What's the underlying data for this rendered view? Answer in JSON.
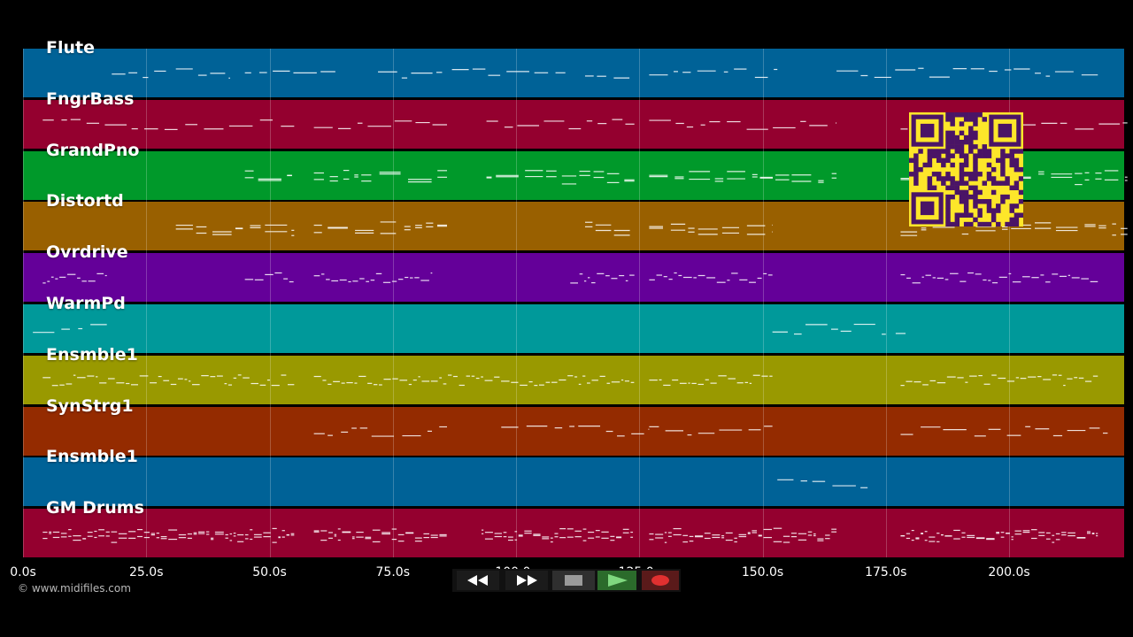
{
  "tracks": [
    {
      "name": "Flute",
      "color": "#006297"
    },
    {
      "name": "FngrBass",
      "color": "#94002f"
    },
    {
      "name": "GrandPno",
      "color": "#00992a"
    },
    {
      "name": "Distortd",
      "color": "#996000"
    },
    {
      "name": "Ovrdrive",
      "color": "#640099"
    },
    {
      "name": "WarmPd",
      "color": "#00999a"
    },
    {
      "name": "Ensmble1",
      "color": "#999900"
    },
    {
      "name": "SynStrg1",
      "color": "#942b00"
    },
    {
      "name": "Ensmble1",
      "color": "#006297"
    },
    {
      "name": "GM Drums",
      "color": "#94002f"
    }
  ],
  "timeline": {
    "ticks": [
      "0.0s",
      "25.0s",
      "50.0s",
      "75.0s",
      "100.0s",
      "125.0s",
      "150.0s",
      "175.0s",
      "200.0s"
    ],
    "tick_values": [
      0,
      25,
      50,
      75,
      100,
      125,
      150,
      175,
      200
    ]
  },
  "transport": {
    "buttons": [
      {
        "name": "rewind-button",
        "icon": "rewind-icon"
      },
      {
        "name": "fast-forward-button",
        "icon": "fast-forward-icon"
      },
      {
        "name": "stop-button",
        "icon": "stop-icon"
      },
      {
        "name": "play-button",
        "icon": "play-icon"
      },
      {
        "name": "record-button",
        "icon": "record-icon"
      }
    ]
  },
  "overlay": {
    "qr_color": "#fde62a",
    "qr_module_color": "#4a1466"
  },
  "copyright": "© www.midifiles.com"
}
